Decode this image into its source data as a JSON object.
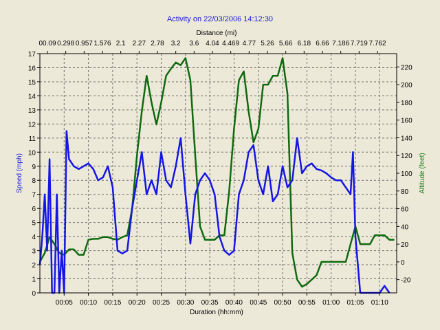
{
  "chart_data": {
    "type": "line",
    "title": "Activity on 22/03/2006 14:12:30",
    "top_axis": {
      "label": "Distance (mi)",
      "ticks": [
        "00.09",
        "0.298",
        "0.957",
        "1.576",
        "2.1",
        "2.27",
        "2.78",
        "3.2",
        "3.6",
        "4.04",
        "4.469",
        "4.77",
        "5.26",
        "5.66",
        "6.18",
        "6.66",
        "7.186",
        "7.719",
        "7.762"
      ]
    },
    "xlabel": "Duration (hh:mm)",
    "x_ticks": [
      "00:05",
      "00:10",
      "00:15",
      "00:20",
      "00:25",
      "00:30",
      "00:35",
      "00:40",
      "00:45",
      "00:50",
      "00:55",
      "01:00",
      "01:05",
      "01:10"
    ],
    "x_range_minutes": [
      0,
      73.5
    ],
    "ylabel_left": "Speed (mph)",
    "ylim_left": [
      0,
      17
    ],
    "y_ticks_left": [
      "0",
      "1",
      "2",
      "3",
      "4",
      "5",
      "6",
      "7",
      "8",
      "9",
      "10",
      "11",
      "12",
      "13",
      "14",
      "15",
      "16",
      "17"
    ],
    "ylabel_right": "Altitude (feet)",
    "ylim_right": [
      -35,
      235
    ],
    "y_ticks_right": [
      "-20",
      "0",
      "20",
      "40",
      "60",
      "80",
      "100",
      "120",
      "140",
      "160",
      "180",
      "200",
      "220"
    ],
    "grid": true,
    "colors": {
      "speed": "#1515e6",
      "altitude": "#0f6a0f",
      "background": "#ece9d8",
      "plot_bg": "#ece9d8",
      "grid": "#6e6e6e"
    },
    "series": [
      {
        "axis": "left",
        "x": [
          0,
          0.5,
          1,
          1.5,
          2,
          2.5,
          3,
          3.5,
          4,
          4.5,
          5,
          5.5,
          6,
          7,
          8,
          9,
          10,
          11,
          12,
          13,
          14,
          15,
          16,
          17,
          18,
          19,
          20,
          21,
          22,
          23,
          24,
          25,
          26,
          27,
          28,
          29,
          30,
          31,
          32,
          33,
          34,
          35,
          36,
          37,
          38,
          39,
          40,
          41,
          42,
          43,
          44,
          45,
          46,
          47,
          48,
          49,
          50,
          51,
          52,
          53,
          54,
          55,
          56,
          57,
          58,
          59,
          60,
          61,
          62,
          63,
          64,
          64.5,
          65,
          65.5,
          66,
          66.5,
          67,
          68,
          69,
          70,
          71,
          72
        ],
        "values": [
          2,
          4,
          7,
          3,
          9.5,
          0,
          0,
          7,
          0,
          3,
          0,
          11.5,
          9.5,
          9,
          8.8,
          9,
          9.2,
          8.8,
          8,
          8.2,
          9,
          7.5,
          3,
          2.8,
          3,
          6,
          8,
          10,
          7,
          8,
          7,
          10,
          8,
          7.5,
          9,
          11,
          7,
          3.5,
          7,
          8,
          8.5,
          8,
          7,
          4,
          3,
          2.7,
          3,
          7,
          8,
          10,
          10.5,
          8,
          7,
          9,
          6.5,
          7,
          9,
          7.5,
          8,
          11,
          8.5,
          9,
          9.2,
          8.8,
          8.7,
          8.5,
          8.2,
          8,
          8,
          7.5,
          7,
          10,
          4,
          2,
          0,
          0,
          0,
          0,
          0,
          0,
          0.5,
          0
        ]
      },
      {
        "axis": "right",
        "x": [
          0,
          1,
          2,
          3,
          4,
          5,
          6,
          7,
          8,
          9,
          10,
          11,
          12,
          13,
          14,
          15,
          16,
          17,
          18,
          19,
          20,
          21,
          22,
          23,
          24,
          25,
          26,
          27,
          28,
          29,
          30,
          31,
          32,
          33,
          34,
          35,
          36,
          37,
          38,
          39,
          40,
          41,
          42,
          43,
          44,
          45,
          46,
          47,
          48,
          49,
          50,
          51,
          52,
          53,
          54,
          55,
          56,
          57,
          58,
          59,
          60,
          61,
          62,
          63,
          64,
          65,
          66,
          67,
          68,
          69,
          70,
          71,
          72,
          73
        ],
        "values": [
          0,
          10,
          28,
          20,
          10,
          8,
          14,
          14,
          8,
          8,
          25,
          26,
          26,
          28,
          28,
          26,
          25,
          28,
          30,
          60,
          120,
          170,
          210,
          180,
          155,
          180,
          210,
          218,
          225,
          222,
          230,
          205,
          120,
          40,
          25,
          25,
          25,
          30,
          30,
          80,
          150,
          205,
          215,
          170,
          135,
          150,
          200,
          200,
          210,
          210,
          230,
          190,
          10,
          -20,
          -28,
          -25,
          -20,
          -15,
          0,
          0,
          0,
          0,
          0,
          0,
          20,
          40,
          20,
          20,
          20,
          30,
          30,
          30,
          25,
          25
        ]
      }
    ]
  }
}
